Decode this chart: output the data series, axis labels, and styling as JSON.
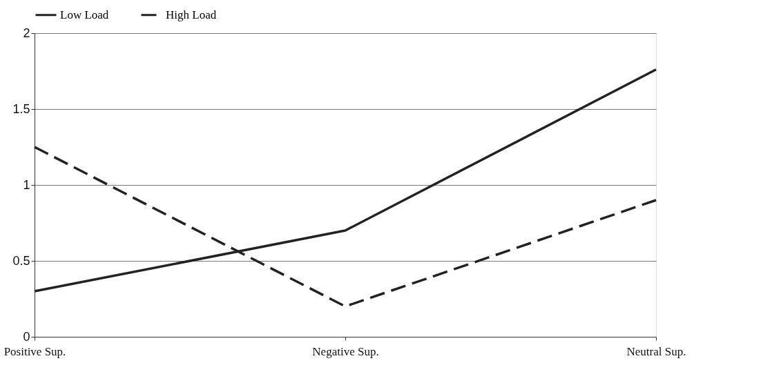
{
  "chart_data": {
    "type": "line",
    "categories": [
      "Positive Sup.",
      "Negative Sup.",
      "Neutral Sup."
    ],
    "series": [
      {
        "name": "Low Load",
        "color": "#222222",
        "line_style": "solid",
        "values": [
          0.3,
          0.7,
          1.76
        ]
      },
      {
        "name": "High Load",
        "color": "#222222",
        "line_style": "dashed",
        "values": [
          1.25,
          0.2,
          0.9
        ]
      }
    ],
    "ylim": [
      0,
      2
    ],
    "yticks": [
      0,
      0.5,
      1,
      1.5,
      2
    ],
    "grid": "y",
    "legend": "top"
  }
}
